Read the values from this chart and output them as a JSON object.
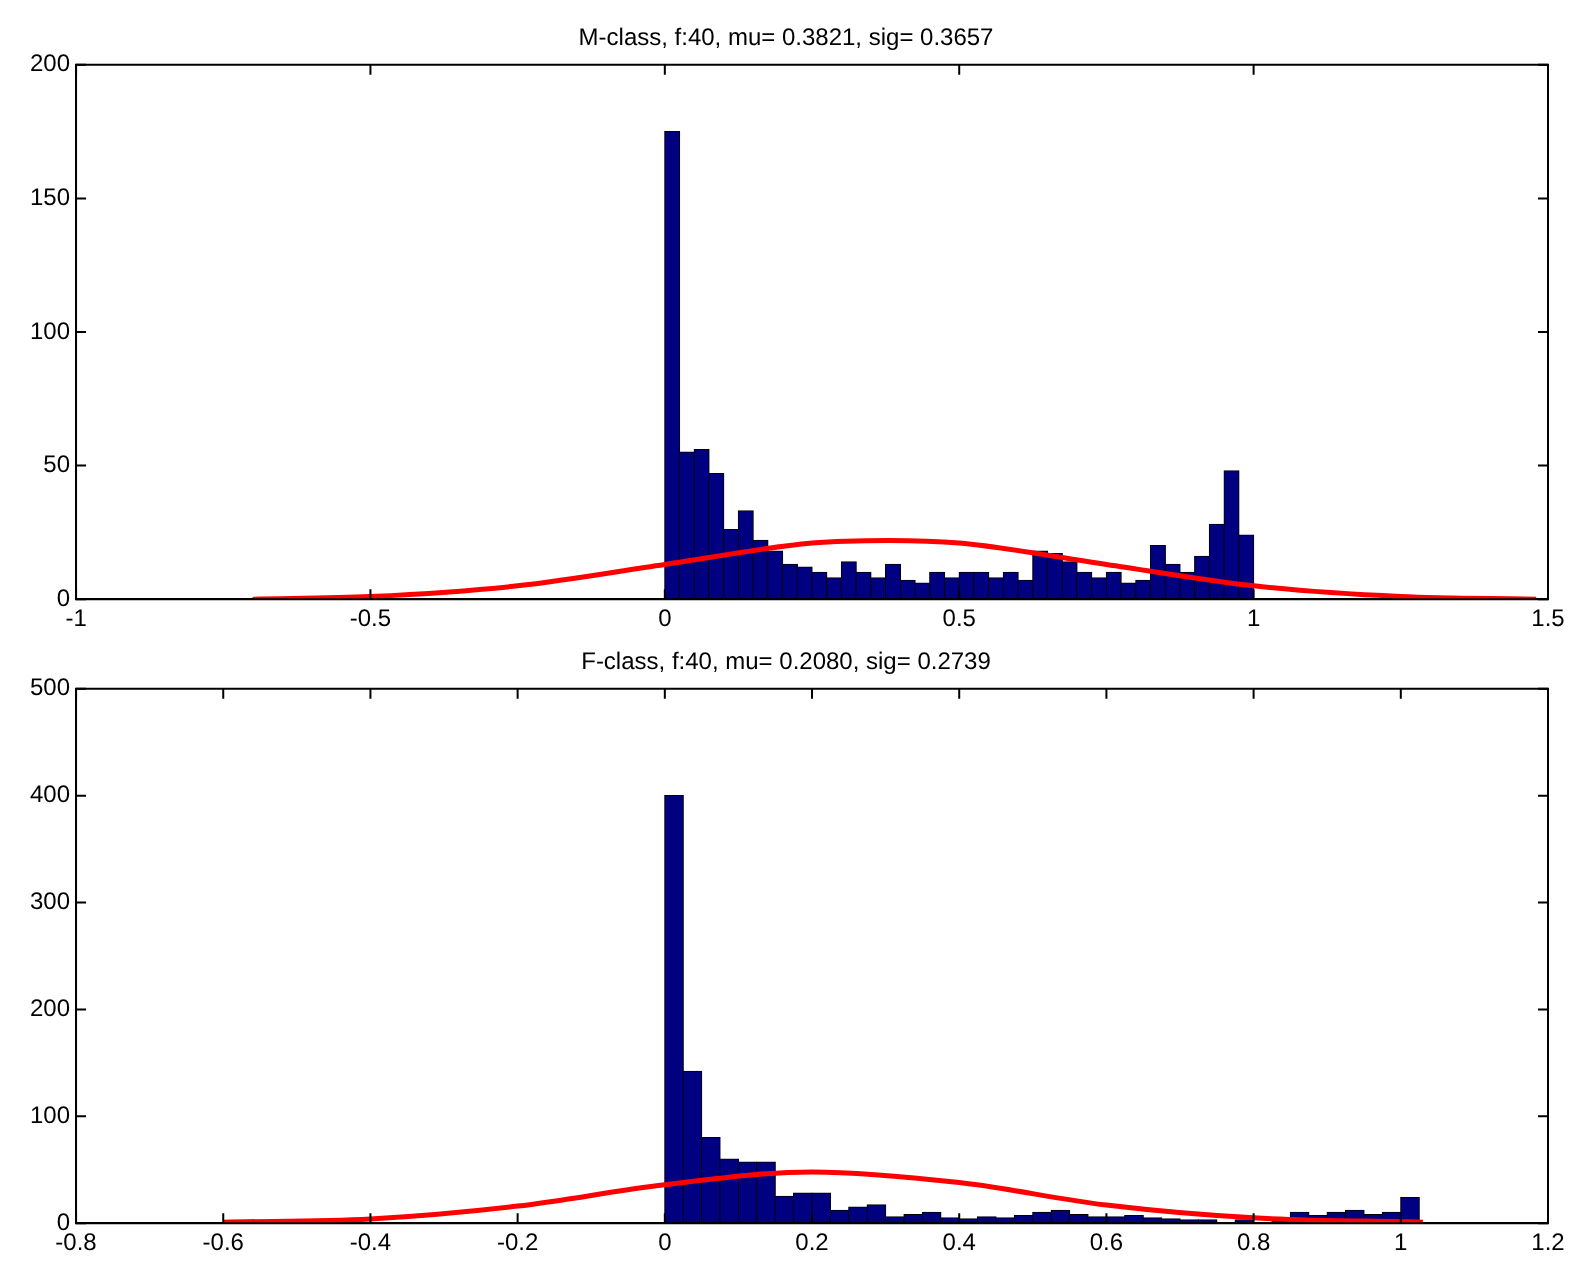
{
  "chart_data": [
    {
      "type": "histogram",
      "title": "M-class, f:40, mu= 0.3821, sig= 0.3657",
      "xlim": [
        -1,
        1.5
      ],
      "xticks": [
        -1,
        -0.5,
        0,
        0.5,
        1,
        1.5
      ],
      "ylim": [
        0,
        200
      ],
      "yticks": [
        0,
        50,
        100,
        150,
        200
      ],
      "grid": false,
      "legend": false,
      "series": [
        {
          "color": "#000080",
          "bins": [
            0,
            0.025,
            0.05,
            0.075,
            0.1,
            0.125,
            0.15,
            0.175,
            0.2,
            0.225,
            0.25,
            0.275,
            0.3,
            0.325,
            0.35,
            0.375,
            0.4,
            0.425,
            0.45,
            0.475,
            0.5,
            0.525,
            0.55,
            0.575,
            0.6,
            0.625,
            0.65,
            0.675,
            0.7,
            0.725,
            0.75,
            0.775,
            0.8,
            0.825,
            0.85,
            0.875,
            0.9,
            0.925,
            0.95,
            0.975,
            1
          ],
          "values": [
            175,
            55,
            56,
            47,
            26,
            33,
            22,
            18,
            13,
            12,
            10,
            8,
            14,
            10,
            8,
            13,
            7,
            6,
            10,
            8,
            10,
            10,
            8,
            10,
            7,
            18,
            17,
            14,
            10,
            8,
            10,
            6,
            7,
            20,
            13,
            10,
            16,
            28,
            48,
            24
          ]
        },
        {
          "type": "line",
          "color": "#ff0000",
          "marker": "none",
          "line_style": "solid",
          "x": [
            -0.7,
            -0.5,
            -0.25,
            0,
            0.25,
            0.38,
            0.5,
            0.75,
            1,
            1.25,
            1.48
          ],
          "values": [
            0,
            1,
            5,
            13,
            21,
            22,
            21,
            13,
            5,
            1,
            0
          ]
        }
      ]
    },
    {
      "type": "histogram",
      "title": "F-class, f:40, mu= 0.2080, sig= 0.2739",
      "xlim": [
        -0.8,
        1.2
      ],
      "xticks": [
        -0.8,
        -0.6,
        -0.4,
        -0.2,
        0,
        0.2,
        0.4,
        0.6,
        0.8,
        1,
        1.2
      ],
      "ylim": [
        0,
        500
      ],
      "yticks": [
        0,
        100,
        200,
        300,
        400,
        500
      ],
      "grid": false,
      "legend": false,
      "series": [
        {
          "color": "#000080",
          "bins": [
            0,
            0.025,
            0.05,
            0.075,
            0.1,
            0.125,
            0.15,
            0.175,
            0.2,
            0.225,
            0.25,
            0.275,
            0.3,
            0.325,
            0.35,
            0.375,
            0.4,
            0.425,
            0.45,
            0.475,
            0.5,
            0.525,
            0.55,
            0.575,
            0.6,
            0.625,
            0.65,
            0.675,
            0.7,
            0.725,
            0.75,
            0.775,
            0.8,
            0.825,
            0.85,
            0.875,
            0.9,
            0.925,
            0.95,
            0.975,
            1,
            1.025
          ],
          "values": [
            400,
            142,
            80,
            60,
            57,
            57,
            25,
            28,
            28,
            12,
            15,
            17,
            6,
            8,
            10,
            5,
            4,
            6,
            5,
            7,
            10,
            12,
            8,
            6,
            6,
            7,
            5,
            4,
            3,
            3,
            null,
            3,
            null,
            4,
            10,
            7,
            10,
            12,
            8,
            10,
            24
          ]
        },
        {
          "type": "line",
          "color": "#ff0000",
          "marker": "none",
          "line_style": "solid",
          "x": [
            -0.6,
            -0.4,
            -0.2,
            0,
            0.2,
            0.4,
            0.6,
            0.8,
            1.03
          ],
          "values": [
            1,
            4,
            16,
            36,
            48,
            38,
            17,
            5,
            1
          ]
        }
      ]
    }
  ]
}
